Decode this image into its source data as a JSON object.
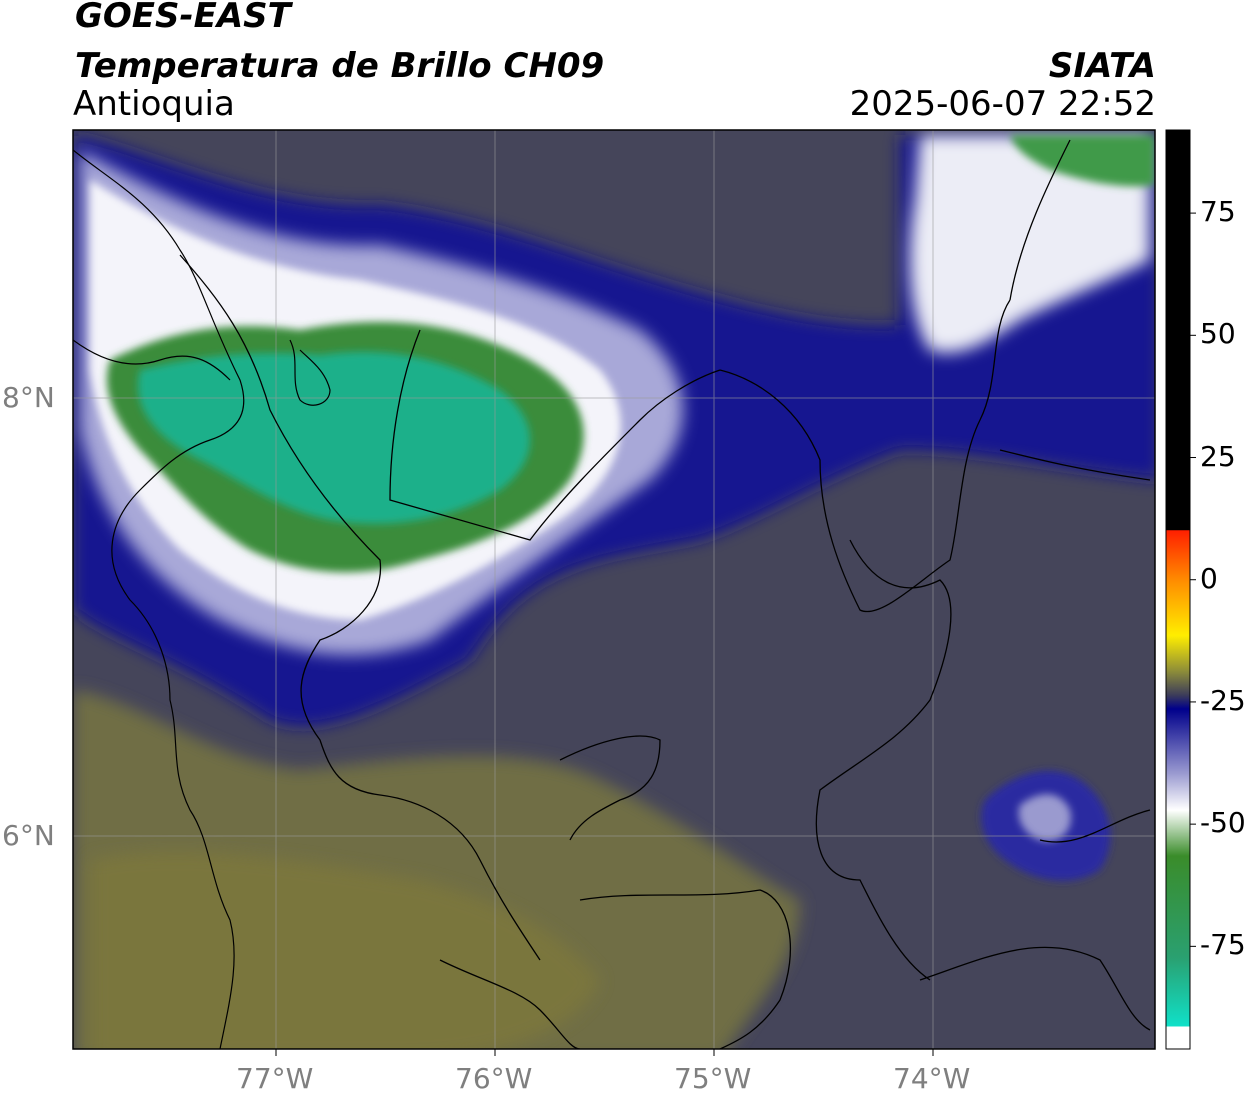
{
  "header": {
    "satellite": "GOES-EAST",
    "product": "Temperatura de Brillo CH09",
    "region": "Antioquia",
    "agency": "SIATA",
    "datetime": "2025-06-07 22:52"
  },
  "map": {
    "lon_range": [
      -77.95,
      -73.0
    ],
    "lat_range": [
      5.0,
      9.2
    ],
    "lon_ticks": [
      {
        "value": -77,
        "label": "77°W"
      },
      {
        "value": -76,
        "label": "76°W"
      },
      {
        "value": -75,
        "label": "75°W"
      },
      {
        "value": -74,
        "label": "74°W"
      }
    ],
    "lat_ticks": [
      {
        "value": 8,
        "label": "8°N"
      },
      {
        "value": 6,
        "label": "6°N"
      }
    ],
    "gridlines": true
  },
  "colorbar": {
    "range": [
      -96,
      92
    ],
    "ticks": [
      {
        "value": 75,
        "label": "75"
      },
      {
        "value": 50,
        "label": "50"
      },
      {
        "value": 25,
        "label": "25"
      },
      {
        "value": 0,
        "label": "0"
      },
      {
        "value": -25,
        "label": "-25"
      },
      {
        "value": -50,
        "label": "-50"
      },
      {
        "value": -75,
        "label": "-75"
      }
    ],
    "colors": {
      "black": "#000000",
      "red": "#ff2000",
      "orange": "#ff8c00",
      "yellow": "#ffee00",
      "olive": "#8a8a3a",
      "slate": "#3c3c5a",
      "navy": "#00008b",
      "lavender": "#b4b4dc",
      "white": "#ffffff",
      "green": "#3a8c2a",
      "cyan": "#10e0c8"
    }
  }
}
